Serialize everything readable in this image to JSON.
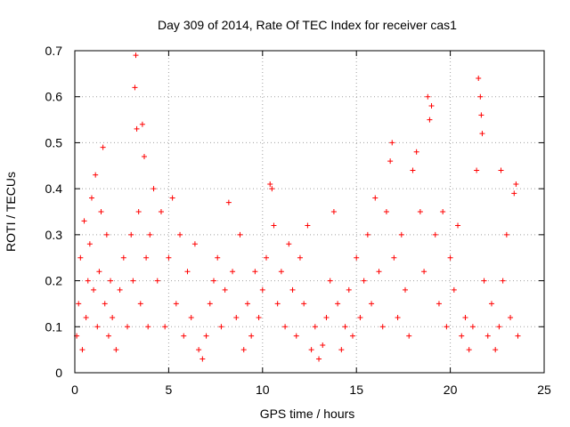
{
  "chart_data": {
    "type": "scatter",
    "title": "Day 309 of 2014, Rate Of TEC Index for receiver cas1",
    "xlabel": "GPS time / hours",
    "ylabel": "ROTI / TECUs",
    "xlim": [
      0,
      25
    ],
    "ylim": [
      0,
      0.7
    ],
    "xticks": [
      "0",
      "5",
      "10",
      "15",
      "20",
      "25"
    ],
    "yticks": [
      "0",
      "0.1",
      "0.2",
      "0.3",
      "0.4",
      "0.5",
      "0.6",
      "0.7"
    ],
    "grid": true,
    "marker": "plus",
    "color": "#ff0000",
    "series": [
      {
        "name": "ROTI",
        "points": [
          [
            0.1,
            0.08
          ],
          [
            0.2,
            0.15
          ],
          [
            0.3,
            0.25
          ],
          [
            0.4,
            0.05
          ],
          [
            0.5,
            0.33
          ],
          [
            0.6,
            0.12
          ],
          [
            0.7,
            0.2
          ],
          [
            0.8,
            0.28
          ],
          [
            0.9,
            0.38
          ],
          [
            1.0,
            0.18
          ],
          [
            1.1,
            0.43
          ],
          [
            1.2,
            0.1
          ],
          [
            1.3,
            0.22
          ],
          [
            1.4,
            0.35
          ],
          [
            1.5,
            0.49
          ],
          [
            1.6,
            0.15
          ],
          [
            1.7,
            0.3
          ],
          [
            1.8,
            0.08
          ],
          [
            1.9,
            0.2
          ],
          [
            2.0,
            0.12
          ],
          [
            2.2,
            0.05
          ],
          [
            2.4,
            0.18
          ],
          [
            2.6,
            0.25
          ],
          [
            2.8,
            0.1
          ],
          [
            3.0,
            0.3
          ],
          [
            3.1,
            0.2
          ],
          [
            3.2,
            0.62
          ],
          [
            3.25,
            0.69
          ],
          [
            3.3,
            0.53
          ],
          [
            3.4,
            0.35
          ],
          [
            3.5,
            0.15
          ],
          [
            3.6,
            0.54
          ],
          [
            3.7,
            0.47
          ],
          [
            3.8,
            0.25
          ],
          [
            3.9,
            0.1
          ],
          [
            4.0,
            0.3
          ],
          [
            4.2,
            0.4
          ],
          [
            4.4,
            0.2
          ],
          [
            4.6,
            0.35
          ],
          [
            4.8,
            0.1
          ],
          [
            5.0,
            0.25
          ],
          [
            5.2,
            0.38
          ],
          [
            5.4,
            0.15
          ],
          [
            5.6,
            0.3
          ],
          [
            5.8,
            0.08
          ],
          [
            6.0,
            0.22
          ],
          [
            6.2,
            0.12
          ],
          [
            6.4,
            0.28
          ],
          [
            6.6,
            0.05
          ],
          [
            6.8,
            0.03
          ],
          [
            7.0,
            0.08
          ],
          [
            7.2,
            0.15
          ],
          [
            7.4,
            0.2
          ],
          [
            7.6,
            0.25
          ],
          [
            7.8,
            0.1
          ],
          [
            8.0,
            0.18
          ],
          [
            8.2,
            0.37
          ],
          [
            8.4,
            0.22
          ],
          [
            8.6,
            0.12
          ],
          [
            8.8,
            0.3
          ],
          [
            9.0,
            0.05
          ],
          [
            9.2,
            0.15
          ],
          [
            9.4,
            0.08
          ],
          [
            9.6,
            0.22
          ],
          [
            9.8,
            0.12
          ],
          [
            10.0,
            0.18
          ],
          [
            10.2,
            0.25
          ],
          [
            10.4,
            0.41
          ],
          [
            10.5,
            0.4
          ],
          [
            10.6,
            0.32
          ],
          [
            10.8,
            0.15
          ],
          [
            11.0,
            0.22
          ],
          [
            11.2,
            0.1
          ],
          [
            11.4,
            0.28
          ],
          [
            11.6,
            0.18
          ],
          [
            11.8,
            0.08
          ],
          [
            12.0,
            0.25
          ],
          [
            12.2,
            0.15
          ],
          [
            12.4,
            0.32
          ],
          [
            12.6,
            0.05
          ],
          [
            12.8,
            0.1
          ],
          [
            13.0,
            0.03
          ],
          [
            13.2,
            0.06
          ],
          [
            13.4,
            0.12
          ],
          [
            13.6,
            0.2
          ],
          [
            13.8,
            0.35
          ],
          [
            14.0,
            0.15
          ],
          [
            14.2,
            0.05
          ],
          [
            14.4,
            0.1
          ],
          [
            14.6,
            0.18
          ],
          [
            14.8,
            0.08
          ],
          [
            15.0,
            0.25
          ],
          [
            15.2,
            0.12
          ],
          [
            15.4,
            0.2
          ],
          [
            15.6,
            0.3
          ],
          [
            15.8,
            0.15
          ],
          [
            16.0,
            0.38
          ],
          [
            16.2,
            0.22
          ],
          [
            16.4,
            0.1
          ],
          [
            16.6,
            0.35
          ],
          [
            16.8,
            0.46
          ],
          [
            16.9,
            0.5
          ],
          [
            17.0,
            0.25
          ],
          [
            17.2,
            0.12
          ],
          [
            17.4,
            0.3
          ],
          [
            17.6,
            0.18
          ],
          [
            17.8,
            0.08
          ],
          [
            18.0,
            0.44
          ],
          [
            18.2,
            0.48
          ],
          [
            18.4,
            0.35
          ],
          [
            18.6,
            0.22
          ],
          [
            18.8,
            0.6
          ],
          [
            18.9,
            0.55
          ],
          [
            19.0,
            0.58
          ],
          [
            19.2,
            0.3
          ],
          [
            19.4,
            0.15
          ],
          [
            19.6,
            0.35
          ],
          [
            19.8,
            0.1
          ],
          [
            20.0,
            0.25
          ],
          [
            20.2,
            0.18
          ],
          [
            20.4,
            0.32
          ],
          [
            20.6,
            0.08
          ],
          [
            20.8,
            0.12
          ],
          [
            21.0,
            0.05
          ],
          [
            21.2,
            0.1
          ],
          [
            21.4,
            0.44
          ],
          [
            21.5,
            0.64
          ],
          [
            21.6,
            0.6
          ],
          [
            21.65,
            0.56
          ],
          [
            21.7,
            0.52
          ],
          [
            21.8,
            0.2
          ],
          [
            22.0,
            0.08
          ],
          [
            22.2,
            0.15
          ],
          [
            22.4,
            0.05
          ],
          [
            22.6,
            0.1
          ],
          [
            22.7,
            0.44
          ],
          [
            22.8,
            0.2
          ],
          [
            23.0,
            0.3
          ],
          [
            23.2,
            0.12
          ],
          [
            23.4,
            0.39
          ],
          [
            23.5,
            0.41
          ],
          [
            23.6,
            0.08
          ]
        ]
      }
    ]
  }
}
